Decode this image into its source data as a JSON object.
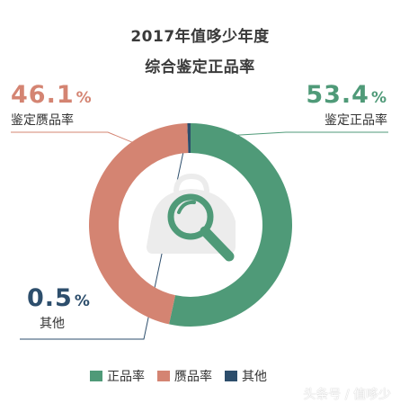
{
  "title_line1": "2017年值哆少年度",
  "title_line2": "综合鉴定正品率",
  "chart_data": {
    "type": "pie",
    "style": "donut",
    "categories": [
      "正品率",
      "赝品率",
      "其他"
    ],
    "values": [
      53.4,
      46.1,
      0.5
    ],
    "unit": "%",
    "colors": [
      "#4f9a78",
      "#d48472",
      "#2d4e6c"
    ],
    "legend_placement": "bottom"
  },
  "callouts": [
    {
      "value": "53.4",
      "unit": "%",
      "label": "鉴定正品率",
      "color": "#4f9a78"
    },
    {
      "value": "46.1",
      "unit": "%",
      "label": "鉴定赝品率",
      "color": "#d48472"
    },
    {
      "value": "0.5",
      "unit": "%",
      "label": "其他",
      "color": "#2d4e6c"
    }
  ],
  "watermark": "头条号 / 值哆少"
}
